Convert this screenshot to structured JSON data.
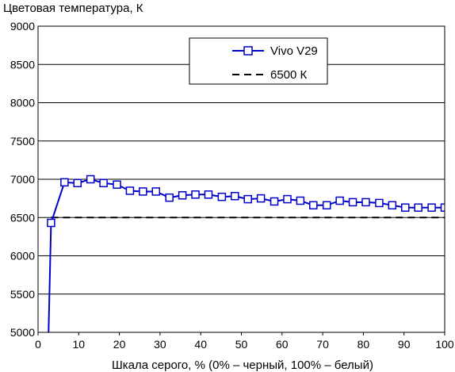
{
  "chart_data": {
    "type": "line",
    "title": "",
    "ylabel": "Цветовая температура, К",
    "xlabel": "Шкала серого, % (0% – черный, 100% – белый)",
    "xlim": [
      0,
      100
    ],
    "ylim": [
      5000,
      9000
    ],
    "xticks": [
      0,
      10,
      20,
      30,
      40,
      50,
      60,
      70,
      80,
      90,
      100
    ],
    "yticks": [
      5000,
      5500,
      6000,
      6500,
      7000,
      7500,
      8000,
      8500,
      9000
    ],
    "grid": "horizontal",
    "legend_position": "top-right",
    "series": [
      {
        "name": "Vivo V29",
        "color": "#0000cc",
        "marker": "open-square",
        "x": [
          2.5,
          3.2,
          6.5,
          9.7,
          12.9,
          16.1,
          19.4,
          22.6,
          25.8,
          29.0,
          32.3,
          35.5,
          38.7,
          41.9,
          45.2,
          48.4,
          51.6,
          54.8,
          58.1,
          61.3,
          64.5,
          67.7,
          71.0,
          74.2,
          77.4,
          80.6,
          83.9,
          87.1,
          90.3,
          93.5,
          96.8,
          100
        ],
        "y": [
          4800,
          6430,
          6960,
          6950,
          7000,
          6950,
          6930,
          6850,
          6840,
          6840,
          6760,
          6790,
          6800,
          6800,
          6770,
          6780,
          6740,
          6750,
          6710,
          6740,
          6720,
          6660,
          6660,
          6720,
          6700,
          6700,
          6690,
          6660,
          6630,
          6630,
          6630,
          6630
        ]
      },
      {
        "name": "6500 К",
        "color": "#000000",
        "style": "dashed",
        "x": [
          3.2,
          100
        ],
        "y": [
          6500,
          6500
        ]
      }
    ]
  }
}
